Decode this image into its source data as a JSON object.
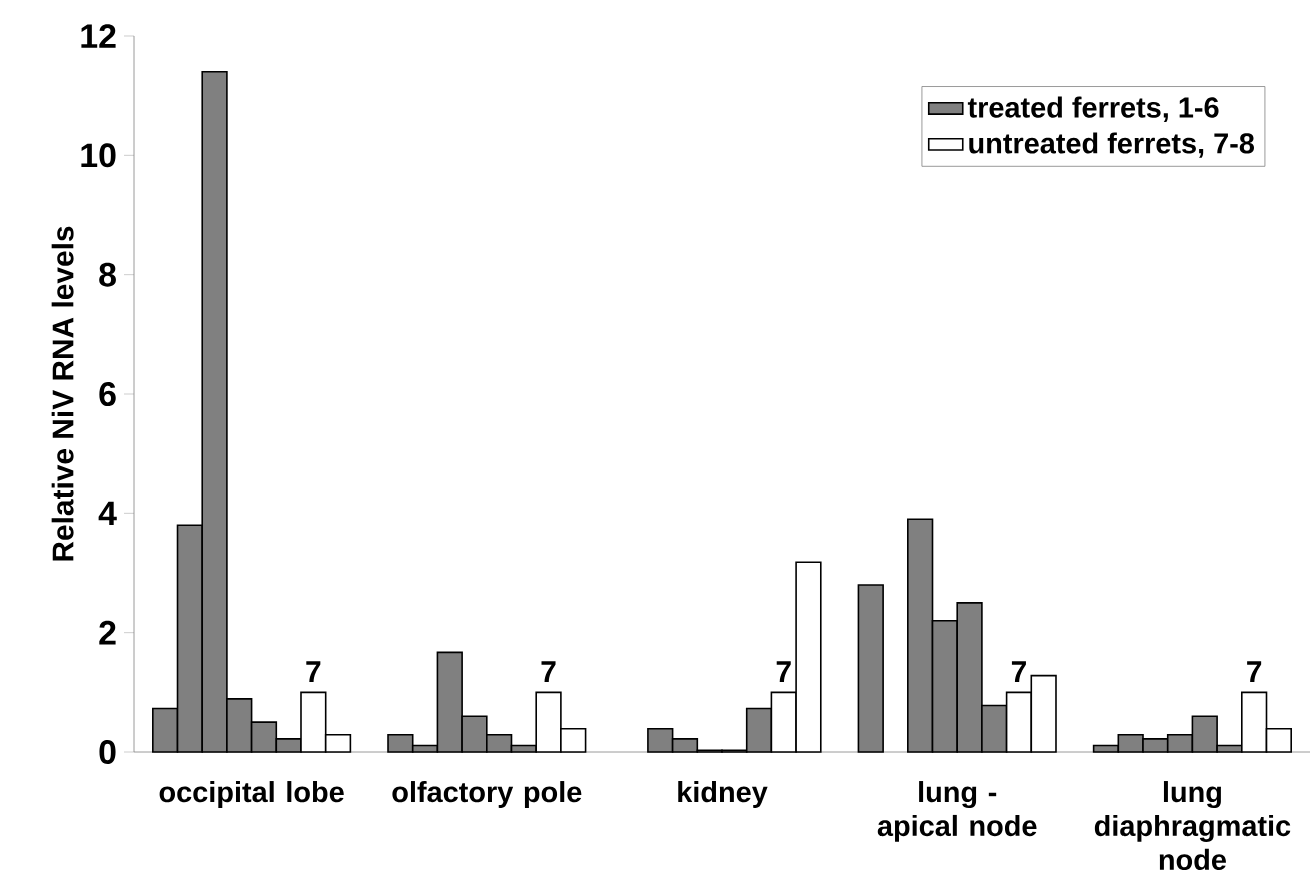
{
  "chart_data": {
    "type": "bar",
    "ylabel": "Relative NiV RNA levels",
    "categories": [
      "occipital lobe",
      "olfactory pole",
      "kidney",
      "lung - apical node",
      "lung diaphragmatic node"
    ],
    "series": [
      {
        "name": "treated ferrets, 1-6",
        "color": "#808080",
        "values": [
          0.73,
          0.29,
          null,
          2.8,
          0.11
        ]
      },
      {
        "color": "#808080",
        "values": [
          3.8,
          0.11,
          0.39,
          null,
          0.29
        ]
      },
      {
        "color": "#808080",
        "values": [
          11.4,
          1.67,
          0.22,
          3.9,
          0.22
        ]
      },
      {
        "color": "#808080",
        "values": [
          0.89,
          0.6,
          0.03,
          2.2,
          0.29
        ]
      },
      {
        "color": "#808080",
        "values": [
          0.5,
          0.29,
          0.03,
          2.5,
          0.6
        ]
      },
      {
        "color": "#808080",
        "values": [
          0.22,
          0.11,
          0.73,
          0.78,
          0.11
        ]
      },
      {
        "name": "untreated ferrets, 7-8",
        "color": "#ffffff",
        "values": [
          1.0,
          1.0,
          1.0,
          1.0,
          1.0
        ]
      },
      {
        "color": "#ffffff",
        "values": [
          0.29,
          0.39,
          3.18,
          1.28,
          0.39
        ]
      }
    ],
    "ylim": [
      0,
      12
    ],
    "yticks": [
      0,
      2,
      4,
      6,
      8,
      10,
      12
    ],
    "grid": false,
    "legend": "top right",
    "annotations": [
      "7",
      "7",
      "7",
      "7",
      "7"
    ]
  }
}
